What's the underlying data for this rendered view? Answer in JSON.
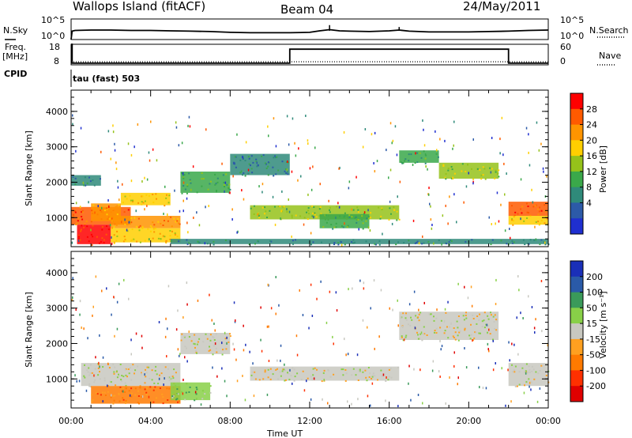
{
  "header": {
    "station": "Wallops Island (fitACF)",
    "beam": "Beam 04",
    "date": "24/May/2011"
  },
  "side_labels": {
    "nsky": "N.Sky",
    "nsearch": "N.Search",
    "freq_line1": "Freq.",
    "freq_line2": "[MHz]",
    "nave": "Nave",
    "cpid": "CPID",
    "cpid_value": "tau (fast) 503"
  },
  "chart_data": [
    {
      "type": "line",
      "panel": "noise",
      "ylabel_left": "N.Sky",
      "ylabel_right": "N.Search",
      "yticks": [
        "10^5",
        "10^0"
      ],
      "series": [
        {
          "name": "N.Sky",
          "style": "solid",
          "x_hours": [
            0,
            0.05,
            0.2,
            1,
            2,
            3,
            4,
            5,
            6,
            7,
            8,
            9,
            10,
            11,
            12,
            12.5,
            13,
            13.5,
            14,
            15,
            16,
            16.5,
            17,
            18,
            19,
            20,
            21,
            22,
            23,
            24
          ],
          "y_log10": [
            0,
            2.2,
            2.4,
            2.5,
            2.5,
            2.4,
            2.4,
            2.3,
            2.2,
            2.1,
            1.9,
            1.8,
            1.8,
            1.8,
            1.9,
            2.3,
            2.6,
            2.3,
            2.2,
            2.1,
            2.3,
            2.5,
            2.2,
            2.0,
            2.0,
            2.0,
            2.1,
            2.2,
            2.4,
            2.5
          ]
        }
      ]
    },
    {
      "type": "line",
      "panel": "frequency",
      "ylabel_left": "Freq. [MHz]",
      "ylabel_right": "Nave",
      "yticks_left": [
        "18",
        "8"
      ],
      "yticks_right": [
        "60",
        "0"
      ],
      "series": [
        {
          "name": "Freq.",
          "style": "solid",
          "x_hours": [
            0,
            0.05,
            0.05,
            11,
            11,
            22,
            22,
            24
          ],
          "y_mhz": [
            18,
            18,
            8.8,
            8.8,
            15.6,
            15.6,
            8.8,
            8.8
          ]
        },
        {
          "name": "Nave",
          "style": "dotted",
          "x_hours": [
            0,
            24
          ],
          "y": [
            9,
            9
          ]
        }
      ]
    },
    {
      "type": "heatmap",
      "panel": "power",
      "xlabel": "",
      "ylabel": "Slant Range [km]",
      "x_range_hours": [
        0,
        24
      ],
      "y_range_km": [
        180,
        4600
      ],
      "xtick_labels": [
        "00:00",
        "04:00",
        "08:00",
        "12:00",
        "16:00",
        "20:00",
        "00:00"
      ],
      "ytick_labels": [
        "1000",
        "2000",
        "3000",
        "4000"
      ],
      "colorbar": {
        "label": "Power [dB]",
        "ticks": [
          "28",
          "24",
          "20",
          "16",
          "12",
          "8",
          "4"
        ],
        "colors": [
          "#ff0000",
          "#ff5a00",
          "#ff9400",
          "#ffcf00",
          "#95c21a",
          "#3aa84a",
          "#2f8a7a",
          "#2c5aa8",
          "#1f2fd0"
        ]
      },
      "regions": [
        {
          "t": [
            0.0,
            3.0
          ],
          "r": [
            800,
            1300
          ],
          "level": 7
        },
        {
          "t": [
            0.3,
            2.0
          ],
          "r": [
            250,
            800
          ],
          "level": 8
        },
        {
          "t": [
            1.0,
            2.5
          ],
          "r": [
            900,
            1400
          ],
          "level": 6
        },
        {
          "t": [
            2.5,
            5.0
          ],
          "r": [
            1350,
            1700
          ],
          "level": 5
        },
        {
          "t": [
            2.0,
            5.5
          ],
          "r": [
            700,
            1050
          ],
          "level": 6
        },
        {
          "t": [
            2.0,
            5.5
          ],
          "r": [
            300,
            700
          ],
          "level": 5
        },
        {
          "t": [
            0.0,
            1.5
          ],
          "r": [
            1900,
            2200
          ],
          "level": 2
        },
        {
          "t": [
            5.5,
            8.0
          ],
          "r": [
            1700,
            2300
          ],
          "level": 3
        },
        {
          "t": [
            8.0,
            11.0
          ],
          "r": [
            2200,
            2800
          ],
          "level": 2
        },
        {
          "t": [
            9.0,
            16.5
          ],
          "r": [
            950,
            1350
          ],
          "level": 4
        },
        {
          "t": [
            12.5,
            15.0
          ],
          "r": [
            700,
            1100
          ],
          "level": 3
        },
        {
          "t": [
            16.5,
            18.5
          ],
          "r": [
            2550,
            2900
          ],
          "level": 3
        },
        {
          "t": [
            18.5,
            21.5
          ],
          "r": [
            2100,
            2550
          ],
          "level": 4
        },
        {
          "t": [
            22.0,
            24.0
          ],
          "r": [
            1050,
            1450
          ],
          "level": 7
        },
        {
          "t": [
            22.0,
            24.0
          ],
          "r": [
            800,
            1050
          ],
          "level": 5
        },
        {
          "t": [
            5.0,
            24.0
          ],
          "r": [
            250,
            400
          ],
          "level": 2
        }
      ]
    },
    {
      "type": "heatmap",
      "panel": "velocity",
      "xlabel": "Time UT",
      "ylabel": "Slant Range [km]",
      "x_range_hours": [
        0,
        24
      ],
      "y_range_km": [
        180,
        4600
      ],
      "xtick_labels": [
        "00:00",
        "04:00",
        "08:00",
        "12:00",
        "16:00",
        "20:00",
        "00:00"
      ],
      "ytick_labels": [
        "1000",
        "2000",
        "3000",
        "4000"
      ],
      "colorbar": {
        "label": "Velocity [m s⁻¹]",
        "ticks": [
          "200",
          "100",
          "50",
          "15",
          "-15",
          "-50",
          "-100",
          "-200"
        ],
        "colors": [
          "#1a2fb8",
          "#2a5aa8",
          "#3a9a5a",
          "#88d048",
          "#c8c8c0",
          "#ffa020",
          "#ff7a00",
          "#ff3000",
          "#e00000"
        ]
      },
      "regions": [
        {
          "t": [
            0.5,
            5.5
          ],
          "r": [
            800,
            1450
          ],
          "color": 4
        },
        {
          "t": [
            1.0,
            5.5
          ],
          "r": [
            300,
            800
          ],
          "color": 6
        },
        {
          "t": [
            5.5,
            8.0
          ],
          "r": [
            1700,
            2300
          ],
          "color": 4
        },
        {
          "t": [
            9.0,
            16.5
          ],
          "r": [
            950,
            1350
          ],
          "color": 4
        },
        {
          "t": [
            16.5,
            21.5
          ],
          "r": [
            2100,
            2900
          ],
          "color": 4
        },
        {
          "t": [
            22.0,
            24.0
          ],
          "r": [
            800,
            1450
          ],
          "color": 4
        },
        {
          "t": [
            5.0,
            7.0
          ],
          "r": [
            400,
            900
          ],
          "color": 3
        }
      ]
    }
  ]
}
